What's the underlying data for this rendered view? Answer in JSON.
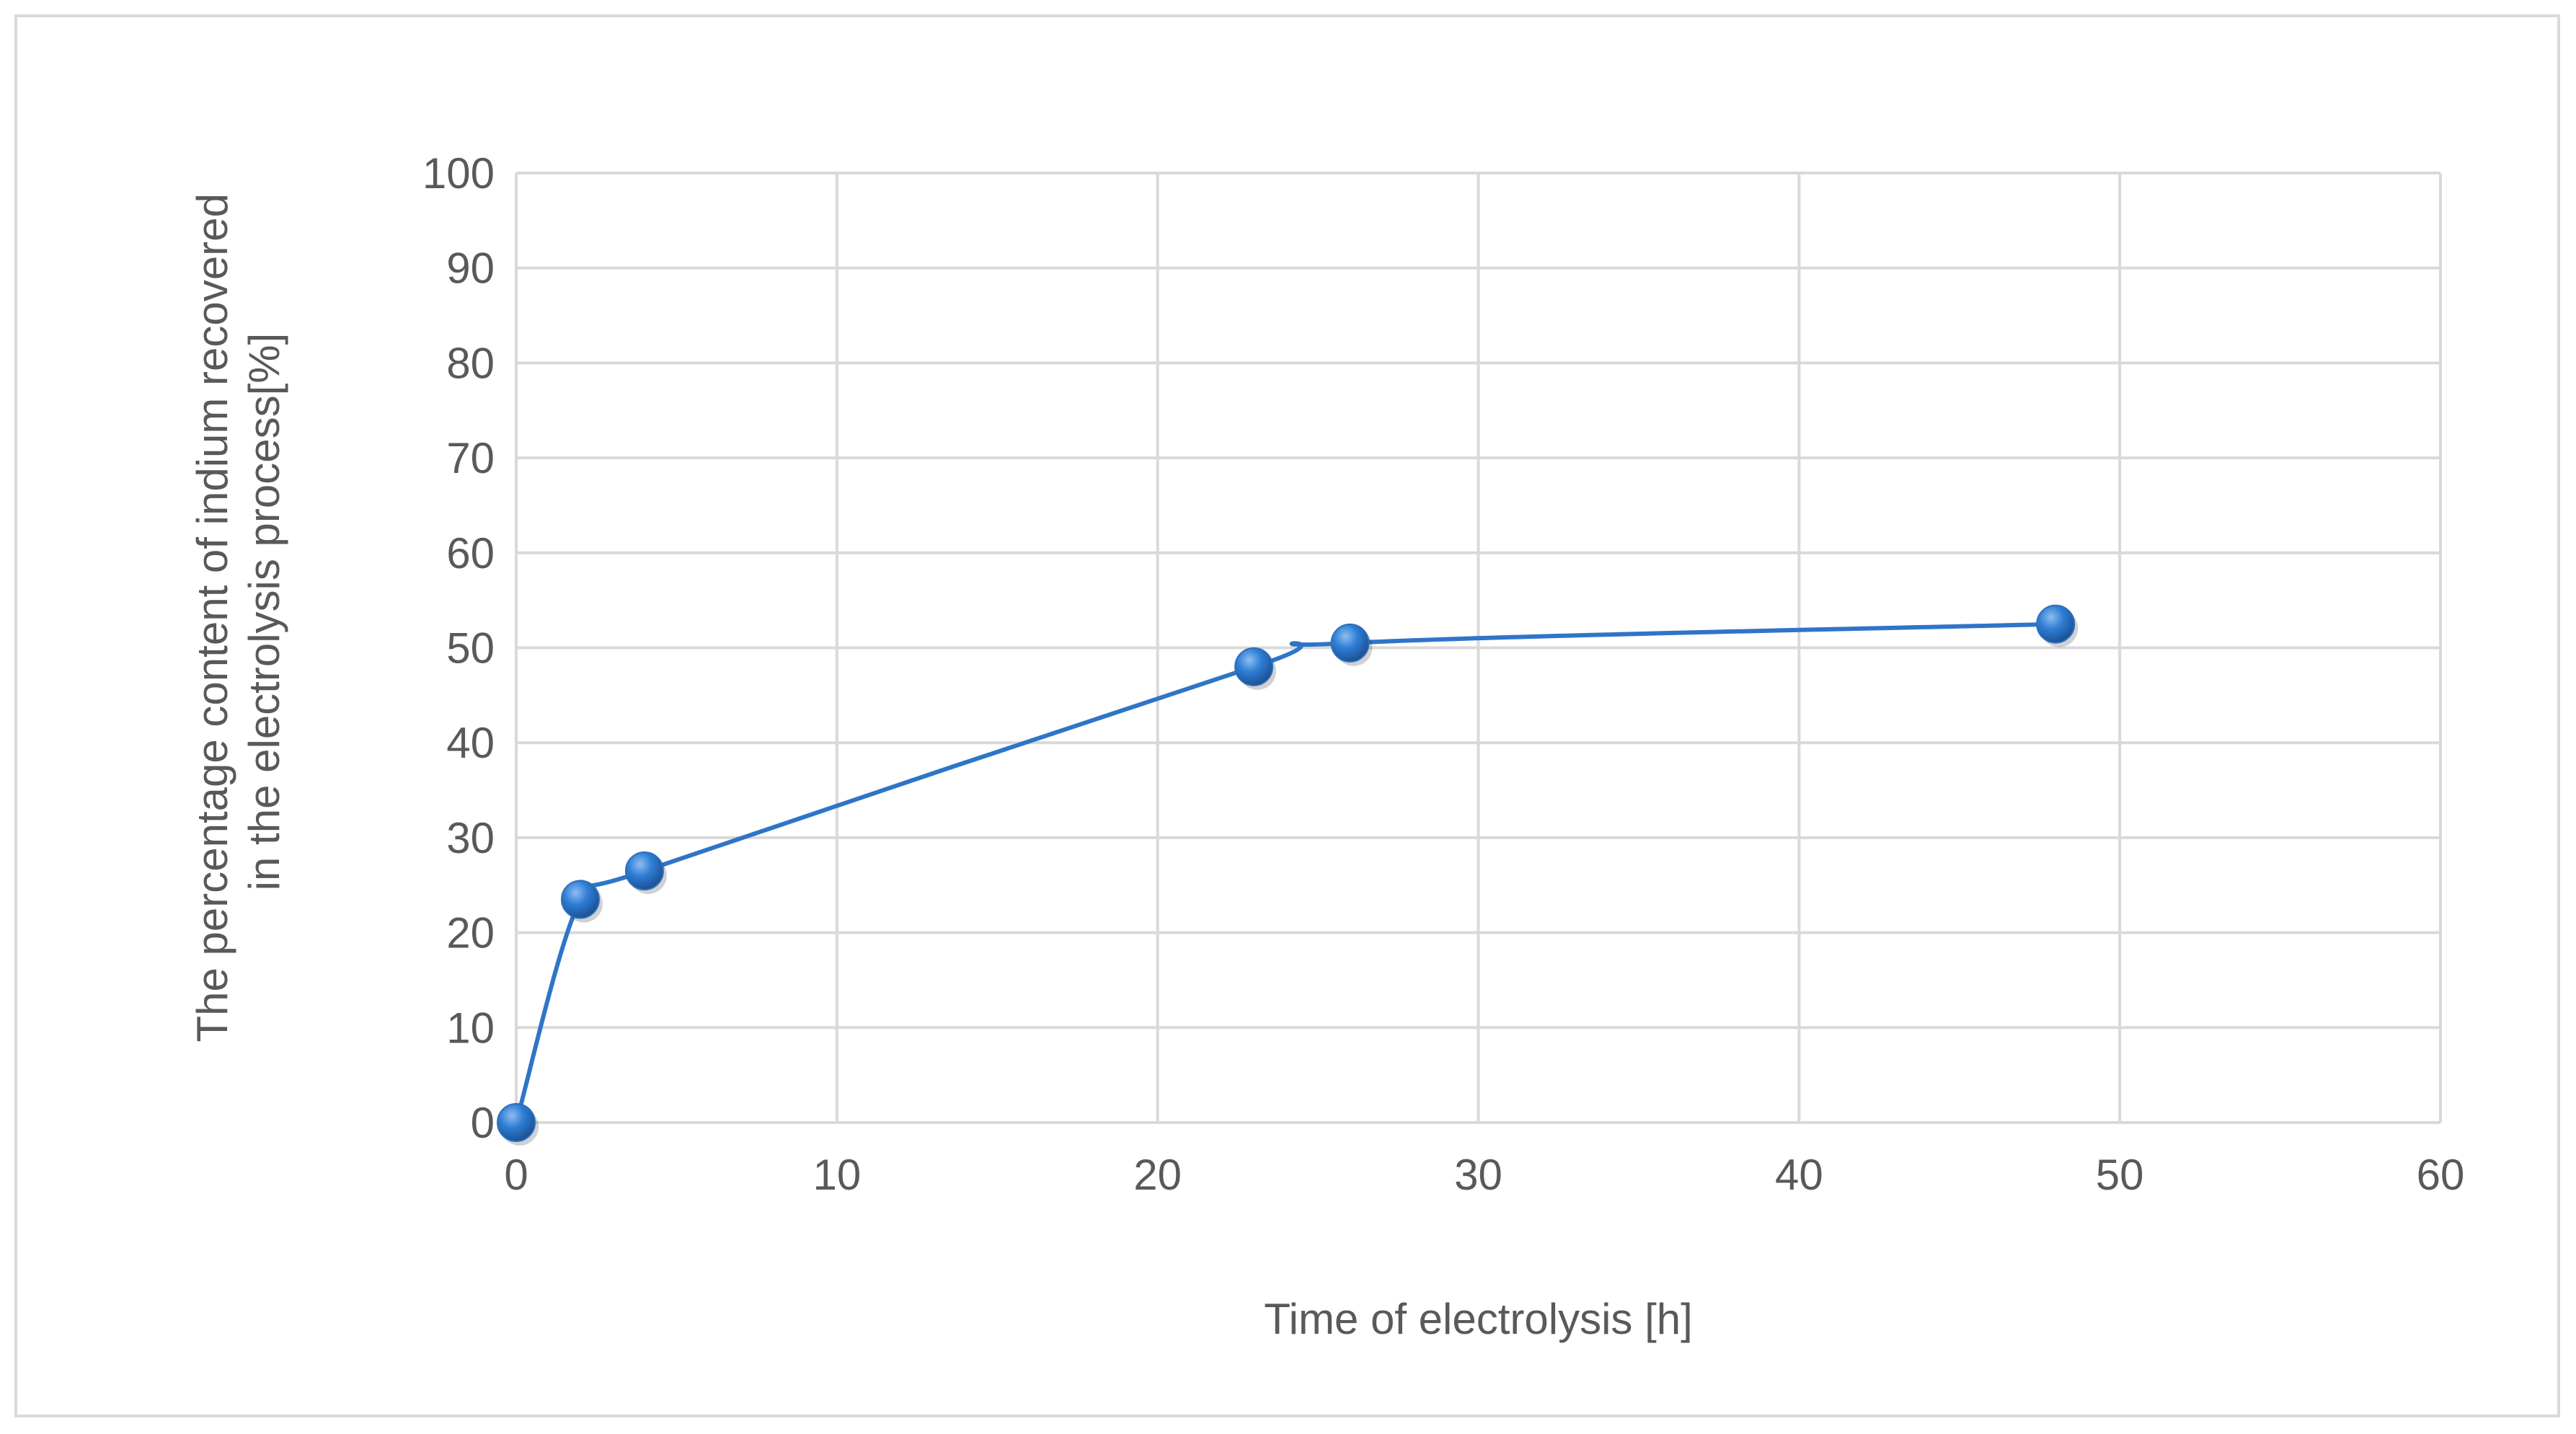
{
  "chart_data": {
    "type": "scatter",
    "title": "",
    "xlabel": "Time of electrolysis [h]",
    "ylabel_lines": [
      "The percentage content of indium recovered",
      "in the electrolysis process[%]"
    ],
    "xlim": [
      0,
      60
    ],
    "ylim": [
      0,
      100
    ],
    "x_ticks": [
      0,
      10,
      20,
      30,
      40,
      50,
      60
    ],
    "y_ticks": [
      0,
      10,
      20,
      30,
      40,
      50,
      60,
      70,
      80,
      90,
      100
    ],
    "grid": true,
    "legend": "none",
    "line_style": "smoothed",
    "series": [
      {
        "x": [
          0,
          2,
          4,
          23,
          26,
          48
        ],
        "y": [
          0,
          23.5,
          26.5,
          48,
          50.5,
          52.5
        ],
        "color": "#2e75c9",
        "marker": "circle"
      }
    ]
  }
}
